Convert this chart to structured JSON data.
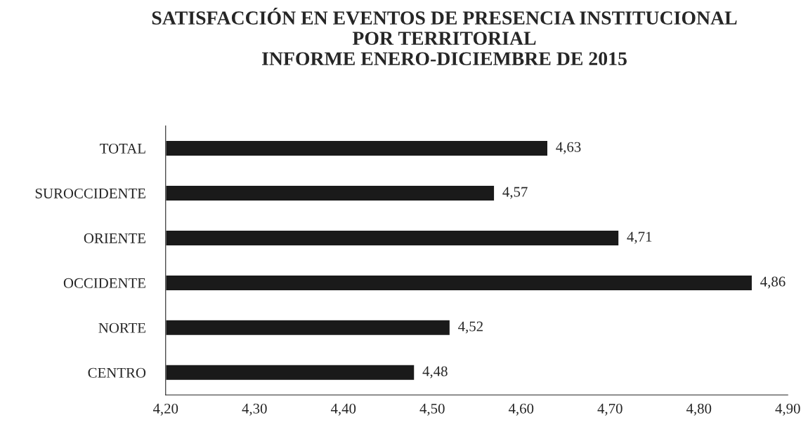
{
  "chart_data": {
    "type": "bar",
    "orientation": "horizontal",
    "title": "SATISFACCIÓN EN EVENTOS DE PRESENCIA INSTITUCIONAL\nPOR TERRITORIAL\nINFORME ENERO-DICIEMBRE DE 2015",
    "categories": [
      "TOTAL",
      "SUROCCIDENTE",
      "ORIENTE",
      "OCCIDENTE",
      "NORTE",
      "CENTRO"
    ],
    "values": [
      4.63,
      4.57,
      4.71,
      4.86,
      4.52,
      4.48
    ],
    "value_labels": [
      "4,63",
      "4,57",
      "4,71",
      "4,86",
      "4,52",
      "4,48"
    ],
    "color": "#1a1a1a",
    "xlim": [
      4.2,
      4.9
    ],
    "xticks": [
      {
        "value": 4.2,
        "label": "4,20"
      },
      {
        "value": 4.3,
        "label": "4,30"
      },
      {
        "value": 4.4,
        "label": "4,40"
      },
      {
        "value": 4.5,
        "label": "4,50"
      },
      {
        "value": 4.6,
        "label": "4,60"
      },
      {
        "value": 4.7,
        "label": "4,70"
      },
      {
        "value": 4.8,
        "label": "4,80"
      },
      {
        "value": 4.9,
        "label": "4,90"
      }
    ],
    "grid": false,
    "legend": false
  }
}
